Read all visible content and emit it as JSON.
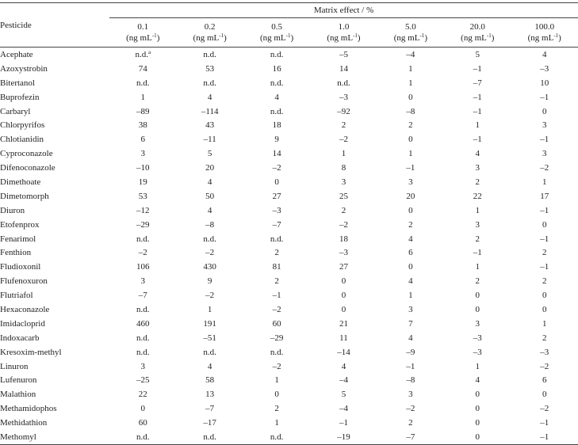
{
  "table": {
    "header": {
      "first": "Pesticide",
      "group": "Matrix effect / %",
      "columns": [
        {
          "value": "0.1",
          "unit": "(ng mL",
          "exp": "-1",
          "close": ")"
        },
        {
          "value": "0.2",
          "unit": "(ng mL",
          "exp": "-1",
          "close": ")"
        },
        {
          "value": "0.5",
          "unit": "(ng mL",
          "exp": "-1",
          "close": ")"
        },
        {
          "value": "1.0",
          "unit": "(ng mL",
          "exp": "-1",
          "close": ")"
        },
        {
          "value": "5.0",
          "unit": "(ng mL",
          "exp": "-1",
          "close": ")"
        },
        {
          "value": "20.0",
          "unit": "(ng mL",
          "exp": "-1",
          "close": ")"
        },
        {
          "value": "100.0",
          "unit": "(ng mL",
          "exp": "-1",
          "close": ")"
        }
      ]
    },
    "footnote_mark": "a",
    "rows": [
      [
        "Acephate",
        "n.d.",
        "n.d.",
        "n.d.",
        "–5",
        "–4",
        "5",
        "4"
      ],
      [
        "Azoxystrobin",
        "74",
        "53",
        "16",
        "14",
        "1",
        "–1",
        "–3"
      ],
      [
        "Bitertanol",
        "n.d.",
        "n.d.",
        "n.d.",
        "n.d.",
        "1",
        "–7",
        "10"
      ],
      [
        "Buprofezin",
        "1",
        "4",
        "4",
        "–3",
        "0",
        "–1",
        "–1"
      ],
      [
        "Carbaryl",
        "–89",
        "–114",
        "n.d.",
        "–92",
        "–8",
        "–1",
        "0"
      ],
      [
        "Chlorpyrifos",
        "38",
        "43",
        "18",
        "2",
        "2",
        "1",
        "3"
      ],
      [
        "Chlotianidin",
        "6",
        "–11",
        "9",
        "–2",
        "0",
        "–1",
        "–1"
      ],
      [
        "Cyproconazole",
        "3",
        "5",
        "14",
        "1",
        "1",
        "4",
        "3"
      ],
      [
        "Difenoconazole",
        "–10",
        "20",
        "–2",
        "8",
        "–1",
        "3",
        "–2"
      ],
      [
        "Dimethoate",
        "19",
        "4",
        "0",
        "3",
        "3",
        "2",
        "1"
      ],
      [
        "Dimetomorph",
        "53",
        "50",
        "27",
        "25",
        "20",
        "22",
        "17"
      ],
      [
        "Diuron",
        "–12",
        "4",
        "–3",
        "2",
        "0",
        "1",
        "–1"
      ],
      [
        "Etofenprox",
        "–29",
        "–8",
        "–7",
        "–2",
        "2",
        "3",
        "0"
      ],
      [
        "Fenarimol",
        "n.d.",
        "n.d.",
        "n.d.",
        "18",
        "4",
        "2",
        "–1"
      ],
      [
        "Fenthion",
        "–2",
        "–2",
        "2",
        "–3",
        "6",
        "–1",
        "2"
      ],
      [
        "Fludioxonil",
        "106",
        "430",
        "81",
        "27",
        "0",
        "1",
        "–1"
      ],
      [
        "Flufenoxuron",
        "3",
        "9",
        "2",
        "0",
        "4",
        "2",
        "2"
      ],
      [
        "Flutriafol",
        "–7",
        "–2",
        "–1",
        "0",
        "1",
        "0",
        "0"
      ],
      [
        "Hexaconazole",
        "n.d.",
        "1",
        "–2",
        "0",
        "3",
        "0",
        "0"
      ],
      [
        "Imidacloprid",
        "460",
        "191",
        "60",
        "21",
        "7",
        "3",
        "1"
      ],
      [
        "Indoxacarb",
        "n.d.",
        "–51",
        "–29",
        "11",
        "4",
        "–3",
        "2"
      ],
      [
        "Kresoxim-methyl",
        "n.d.",
        "n.d.",
        "n.d.",
        "–14",
        "–9",
        "–3",
        "–3"
      ],
      [
        "Linuron",
        "3",
        "4",
        "–2",
        "4",
        "–1",
        "1",
        "–2"
      ],
      [
        "Lufenuron",
        "–25",
        "58",
        "1",
        "–4",
        "–8",
        "4",
        "6"
      ],
      [
        "Malathion",
        "22",
        "13",
        "0",
        "5",
        "3",
        "0",
        "0"
      ],
      [
        "Methamidophos",
        "0",
        "–7",
        "2",
        "–4",
        "–2",
        "0",
        "–2"
      ],
      [
        "Methidathion",
        "60",
        "–17",
        "1",
        "–1",
        "2",
        "0",
        "–1"
      ],
      [
        "Methomyl",
        "n.d.",
        "n.d.",
        "n.d.",
        "–19",
        "–7",
        "0",
        "–1"
      ]
    ]
  }
}
